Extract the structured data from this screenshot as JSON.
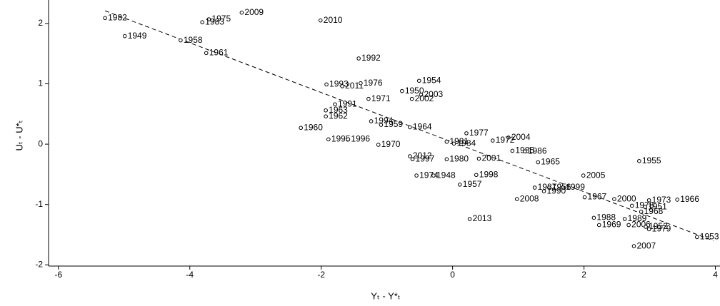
{
  "chart_data": {
    "type": "scatter",
    "x_label": "Yₜ - Y*ₜ",
    "y_label": "Uₜ - U*ₜ",
    "xlim": [
      -6.15,
      4.07
    ],
    "ylim": [
      -2.02,
      2.33
    ],
    "xticks": [
      -6,
      -4,
      -2,
      0,
      2,
      4
    ],
    "yticks": [
      -2,
      -1,
      0,
      1,
      2
    ],
    "color": "#000000",
    "labels": [
      "1982",
      "1949",
      "1958",
      "1975",
      "1983",
      "2009",
      "1961",
      "2010",
      "1992",
      "1993",
      "2011",
      "1976",
      "1954",
      "1950",
      "2003",
      "1971",
      "2002",
      "1991",
      "1963",
      "1962",
      "1994",
      "1959",
      "1964",
      "1960",
      "1977",
      "2004",
      "1972",
      "1981",
      "1984",
      "1995",
      "1996",
      "1970",
      "1985",
      "1986",
      "2012",
      "1997",
      "1980",
      "2001",
      "1965",
      "1955",
      "2005",
      "1974",
      "1948",
      "1998",
      "1957",
      "1987",
      "1956",
      "1999",
      "1990",
      "1967",
      "2000",
      "1973",
      "1966",
      "2008",
      "1978",
      "1951",
      "1968",
      "1988",
      "1989",
      "1969",
      "2006",
      "1952",
      "1979",
      "2013",
      "2007",
      "1953"
    ],
    "x": [
      -5.29,
      -4.99,
      -4.14,
      -3.71,
      -3.81,
      -3.21,
      -3.75,
      -2.01,
      -1.43,
      -1.92,
      -1.68,
      -1.4,
      -0.51,
      -0.77,
      -0.48,
      -1.28,
      -0.62,
      -1.79,
      -1.93,
      -1.93,
      -1.24,
      -1.09,
      -0.65,
      -2.31,
      0.21,
      0.85,
      0.61,
      -0.09,
      0.02,
      -1.89,
      -1.59,
      -1.13,
      0.91,
      1.1,
      -0.65,
      -0.61,
      -0.09,
      0.4,
      1.3,
      2.84,
      1.99,
      -0.55,
      -0.29,
      0.36,
      0.11,
      1.25,
      1.47,
      1.68,
      1.39,
      2.01,
      2.46,
      2.99,
      3.42,
      0.98,
      2.73,
      2.93,
      2.87,
      2.15,
      2.62,
      2.23,
      2.68,
      2.94,
      2.99,
      0.26,
      2.76,
      3.72
    ],
    "values": [
      2.09,
      1.79,
      1.72,
      2.07,
      2.02,
      2.18,
      1.51,
      2.05,
      1.42,
      0.99,
      0.96,
      1.01,
      1.05,
      0.88,
      0.82,
      0.75,
      0.75,
      0.66,
      0.56,
      0.46,
      0.38,
      0.32,
      0.28,
      0.27,
      0.18,
      0.11,
      0.06,
      0.04,
      0.01,
      0.08,
      0.08,
      -0.01,
      -0.11,
      -0.12,
      -0.2,
      -0.25,
      -0.25,
      -0.24,
      -0.3,
      -0.28,
      -0.52,
      -0.52,
      -0.52,
      -0.51,
      -0.67,
      -0.72,
      -0.72,
      -0.72,
      -0.78,
      -0.88,
      -0.91,
      -0.93,
      -0.92,
      -0.91,
      -1.02,
      -1.04,
      -1.12,
      -1.22,
      -1.24,
      -1.34,
      -1.34,
      -1.37,
      -1.41,
      -1.24,
      -1.69,
      -1.54
    ],
    "trend": {
      "x": [
        -5.29,
        3.97
      ],
      "values": [
        2.21,
        -1.6
      ]
    }
  }
}
